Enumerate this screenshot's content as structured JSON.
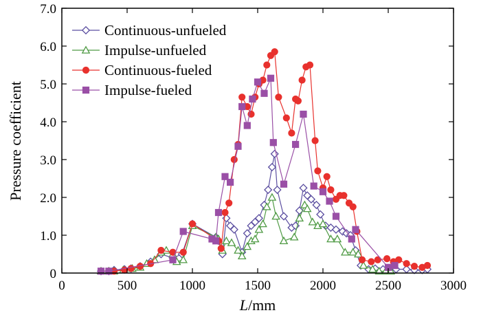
{
  "chart_data": {
    "type": "line",
    "title": "",
    "xlabel_italic": "L",
    "xlabel_unit": "/mm",
    "ylabel": "Pressure coefficient",
    "xlim": [
      0,
      3000
    ],
    "ylim": [
      0,
      7.0
    ],
    "xticks": [
      "0",
      "500",
      "1000",
      "1500",
      "2000",
      "2500",
      "3000"
    ],
    "yticks": [
      "0",
      "1.0",
      "2.0",
      "3.0",
      "4.0",
      "5.0",
      "6.0",
      "7.0"
    ],
    "grid": false,
    "legend_position": "top-left",
    "series": [
      {
        "name": "Continuous-unfueled",
        "color": "#5b4ea0",
        "marker": "diamond-open",
        "x": [
          300,
          360,
          400,
          480,
          530,
          600,
          680,
          760,
          850,
          920,
          1000,
          1180,
          1200,
          1230,
          1260,
          1290,
          1320,
          1380,
          1420,
          1450,
          1480,
          1510,
          1550,
          1580,
          1610,
          1630,
          1650,
          1700,
          1760,
          1790,
          1820,
          1850,
          1880,
          1910,
          1950,
          1980,
          2020,
          2060,
          2100,
          2150,
          2180,
          2210,
          2250,
          2290,
          2350,
          2400,
          2460,
          2520,
          2560,
          2640,
          2700,
          2760,
          2800
        ],
        "y": [
          0.05,
          0.05,
          0.08,
          0.1,
          0.12,
          0.18,
          0.3,
          0.5,
          0.4,
          0.5,
          1.3,
          0.95,
          0.85,
          0.5,
          1.45,
          1.25,
          1.15,
          0.55,
          1.05,
          1.25,
          1.35,
          1.45,
          1.8,
          2.2,
          2.8,
          3.15,
          2.2,
          1.5,
          1.2,
          1.25,
          1.65,
          2.25,
          2.05,
          1.95,
          1.8,
          1.55,
          1.25,
          1.2,
          1.15,
          1.1,
          1.05,
          1.0,
          0.6,
          0.2,
          0.1,
          0.12,
          0.1,
          0.12,
          0.1,
          0.1,
          0.08,
          0.08,
          0.1
        ]
      },
      {
        "name": "Impulse-unfueled",
        "color": "#4f9a44",
        "marker": "triangle-open",
        "x": [
          300,
          360,
          400,
          470,
          540,
          600,
          650,
          710,
          760,
          800,
          850,
          880,
          930,
          1000,
          1180,
          1200,
          1230,
          1260,
          1300,
          1350,
          1380,
          1420,
          1450,
          1480,
          1510,
          1540,
          1570,
          1610,
          1640,
          1700,
          1780,
          1820,
          1860,
          1880,
          1920,
          1960,
          2000,
          2060,
          2110,
          2170,
          2230,
          2270,
          2310,
          2380,
          2430,
          2480,
          2520
        ],
        "y": [
          0.05,
          0.05,
          0.05,
          0.08,
          0.12,
          0.15,
          0.25,
          0.35,
          0.55,
          0.6,
          0.5,
          0.3,
          0.35,
          1.25,
          0.95,
          0.9,
          0.6,
          0.85,
          0.8,
          0.6,
          0.45,
          0.7,
          0.85,
          0.9,
          1.15,
          1.3,
          1.75,
          2.0,
          1.5,
          0.85,
          0.95,
          1.45,
          1.8,
          1.7,
          1.35,
          1.25,
          1.3,
          0.9,
          0.9,
          0.55,
          0.55,
          0.5,
          0.2,
          0.1,
          0.05,
          0.05,
          0.05
        ]
      },
      {
        "name": "Continuous-fueled",
        "color": "#e8312d",
        "marker": "circle-filled",
        "x": [
          300,
          360,
          400,
          480,
          530,
          600,
          680,
          760,
          850,
          930,
          1000,
          1200,
          1220,
          1250,
          1280,
          1320,
          1350,
          1380,
          1420,
          1450,
          1480,
          1510,
          1540,
          1570,
          1600,
          1630,
          1660,
          1720,
          1760,
          1790,
          1810,
          1840,
          1870,
          1900,
          1940,
          1960,
          2000,
          2030,
          2060,
          2100,
          2130,
          2160,
          2200,
          2230,
          2260,
          2300,
          2370,
          2420,
          2490,
          2540,
          2580,
          2640,
          2700,
          2760,
          2800
        ],
        "y": [
          0.05,
          0.05,
          0.05,
          0.08,
          0.12,
          0.18,
          0.25,
          0.6,
          0.55,
          0.55,
          1.3,
          0.85,
          0.65,
          1.6,
          1.85,
          3.0,
          3.4,
          4.65,
          4.4,
          4.2,
          4.65,
          5.0,
          5.1,
          5.5,
          5.75,
          5.85,
          4.65,
          4.1,
          3.7,
          4.6,
          4.55,
          5.1,
          5.45,
          5.5,
          3.5,
          2.7,
          2.25,
          2.55,
          2.2,
          1.95,
          2.05,
          2.05,
          1.85,
          1.75,
          1.1,
          0.35,
          0.3,
          0.35,
          0.38,
          0.3,
          0.35,
          0.25,
          0.18,
          0.15,
          0.2
        ]
      },
      {
        "name": "Impulse-fueled",
        "color": "#9a4fa6",
        "marker": "square-filled",
        "x": [
          300,
          360,
          850,
          930,
          1150,
          1180,
          1200,
          1250,
          1290,
          1350,
          1380,
          1420,
          1460,
          1500,
          1550,
          1600,
          1620,
          1700,
          1790,
          1850,
          1930,
          2000,
          2050,
          2100,
          2220,
          2250,
          2500,
          2550
        ],
        "y": [
          0.05,
          0.05,
          0.35,
          1.1,
          0.9,
          0.85,
          1.6,
          2.55,
          2.4,
          3.35,
          4.4,
          3.9,
          4.6,
          5.05,
          4.75,
          5.15,
          3.45,
          2.35,
          3.4,
          4.2,
          2.3,
          2.15,
          1.9,
          1.5,
          0.9,
          1.15,
          0.15,
          0.2
        ]
      }
    ]
  }
}
